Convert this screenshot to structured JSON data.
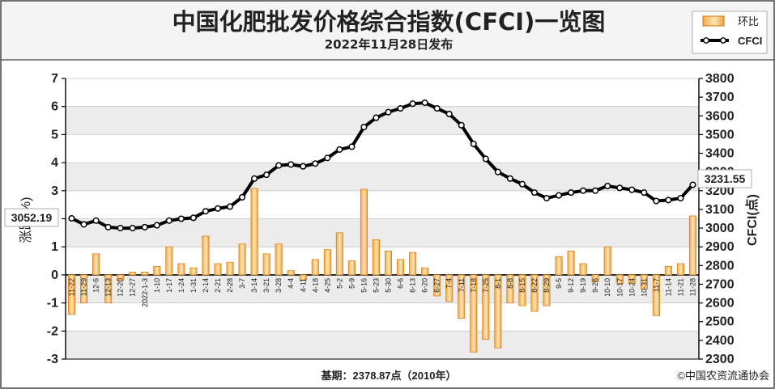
{
  "chart_data": {
    "type": "bar+line",
    "title": "中国化肥批发价格综合指数(CFCI)一览图",
    "subtitle": "2022年11月28日发布",
    "footer_base": "基期：2378.87点（2010年）",
    "footer_copyright": "©中国农资流通协会",
    "y_left_label": "涨跌(%)",
    "y_right_label": "CFCI(点)",
    "y_left_range": [
      -3,
      7
    ],
    "y_left_ticks": [
      "-3",
      "-2",
      "-1",
      "0",
      "1",
      "2",
      "3",
      "4",
      "5",
      "6",
      "7"
    ],
    "y_right_range": [
      2300,
      3800
    ],
    "y_right_ticks": [
      "2300",
      "2400",
      "2500",
      "2600",
      "2700",
      "2800",
      "2900",
      "3000",
      "3100",
      "3200",
      "3300",
      "3400",
      "3500",
      "3600",
      "3700",
      "3800"
    ],
    "legend": {
      "bar": "环比",
      "line": "CFCI"
    },
    "callout_start": "3052.19",
    "callout_end": "3231.55",
    "categories": [
      "11-22",
      "11-29",
      "12-6",
      "12-13",
      "12-20",
      "12-27",
      "2022-1-3",
      "1-10",
      "1-17",
      "1-24",
      "1-31",
      "2-14",
      "2-21",
      "2-28",
      "3-7",
      "3-14",
      "3-21",
      "3-28",
      "4-4",
      "4-11",
      "4-18",
      "4-25",
      "5-2",
      "5-9",
      "5-16",
      "5-23",
      "5-30",
      "6-6",
      "6-13",
      "6-20",
      "6-27",
      "7-4",
      "7-11",
      "7-18",
      "7-25",
      "8-1",
      "8-8",
      "8-15",
      "8-22",
      "8-29",
      "9-5",
      "9-12",
      "9-19",
      "9-26",
      "10-10",
      "10-17",
      "10-24",
      "10-31",
      "11-7",
      "11-14",
      "11-21",
      "11-28"
    ],
    "series": [
      {
        "name": "环比",
        "values": [
          -1.4,
          -1.0,
          0.75,
          -1.0,
          -0.2,
          0.1,
          0.1,
          0.3,
          1.0,
          0.4,
          0.25,
          1.38,
          0.4,
          0.45,
          1.1,
          3.08,
          0.75,
          1.1,
          0.15,
          -0.2,
          0.55,
          0.9,
          1.5,
          0.5,
          3.05,
          1.25,
          0.85,
          0.55,
          0.8,
          0.25,
          -0.75,
          -0.95,
          -1.55,
          -2.75,
          -2.3,
          -2.6,
          -1.0,
          -1.1,
          -1.3,
          -1.1,
          0.65,
          0.85,
          0.4,
          -0.25,
          1.0,
          -0.3,
          -0.3,
          -0.5,
          -1.45,
          0.3,
          0.4,
          2.1
        ]
      },
      {
        "name": "CFCI",
        "values": [
          3052.19,
          3020,
          3040,
          3005,
          3000,
          3000,
          3005,
          3015,
          3040,
          3050,
          3055,
          3090,
          3105,
          3115,
          3165,
          3265,
          3285,
          3335,
          3340,
          3330,
          3345,
          3375,
          3420,
          3435,
          3540,
          3590,
          3620,
          3640,
          3665,
          3670,
          3640,
          3610,
          3550,
          3450,
          3370,
          3300,
          3265,
          3235,
          3190,
          3160,
          3175,
          3190,
          3200,
          3200,
          3225,
          3215,
          3205,
          3190,
          3145,
          3150,
          3160,
          3231.55
        ]
      }
    ]
  }
}
